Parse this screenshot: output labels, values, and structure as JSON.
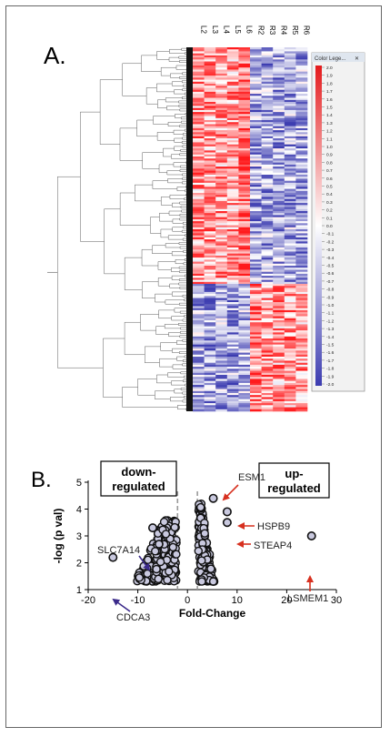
{
  "panel_a": {
    "label": "A.",
    "columns": [
      "L2",
      "L3",
      "L4",
      "L5",
      "L6",
      "R2",
      "R3",
      "R4",
      "R5",
      "R6"
    ],
    "legend": {
      "title": "Color Lege...",
      "ticks": [
        "2.0",
        "1.9",
        "1.8",
        "1.7",
        "1.6",
        "1.5",
        "1.4",
        "1.3",
        "1.2",
        "1.1",
        "1.0",
        "0.9",
        "0.8",
        "0.7",
        "0.6",
        "0.5",
        "0.4",
        "0.3",
        "0.2",
        "0.1",
        "0.0",
        "-0.1",
        "-0.2",
        "-0.3",
        "-0.4",
        "-0.5",
        "-0.6",
        "-0.7",
        "-0.8",
        "-0.9",
        "-1.0",
        "-1.1",
        "-1.2",
        "-1.3",
        "-1.4",
        "-1.5",
        "-1.6",
        "-1.7",
        "-1.8",
        "-1.9",
        "-2.0"
      ]
    },
    "chart_data": {
      "type": "heatmap",
      "x": [
        "L2",
        "L3",
        "L4",
        "L5",
        "L6",
        "R2",
        "R3",
        "R4",
        "R5",
        "R6"
      ],
      "color_range": [
        -2.0,
        2.0
      ],
      "colors": {
        "high": "#e41a1c",
        "mid": "#ffffff",
        "low": "#3b3bb0"
      }
    }
  },
  "panel_b": {
    "label": "B.",
    "box_down": [
      "down-",
      "regulated"
    ],
    "box_up": [
      "up-",
      "regulated"
    ],
    "annotations": [
      {
        "id": "esm1",
        "text": "ESM1",
        "color": "#d7301f"
      },
      {
        "id": "hspb9",
        "text": "HSPB9",
        "color": "#d7301f"
      },
      {
        "id": "steap4",
        "text": "STEAP4",
        "color": "#d7301f"
      },
      {
        "id": "lsmem1",
        "text": "LSMEM1",
        "color": "#d7301f"
      },
      {
        "id": "slc7a14",
        "text": "SLC7A14",
        "color": "#3b2a8a"
      },
      {
        "id": "cdca3",
        "text": "CDCA3",
        "color": "#3b2a8a"
      }
    ],
    "chart_data": {
      "type": "scatter",
      "xlabel": "Fold-Change",
      "ylabel": "-log (p val)",
      "xlim": [
        -20,
        30
      ],
      "ylim": [
        1,
        5
      ],
      "xticks": [
        "-20",
        "-10",
        "0",
        "10",
        "20",
        "30"
      ],
      "yticks": [
        "1",
        "2",
        "3",
        "4",
        "5"
      ],
      "threshold_lines": [
        -2,
        2
      ],
      "highlighted_points": [
        {
          "name": "ESM1",
          "x": 5.2,
          "y": 4.4
        },
        {
          "name": "HSPB9",
          "x": 8.0,
          "y": 3.9
        },
        {
          "name": "STEAP4",
          "x": 8.0,
          "y": 3.5
        },
        {
          "name": "LSMEM1",
          "x": 25.0,
          "y": 3.0
        },
        {
          "name": "SLC7A14",
          "x": -7.0,
          "y": 3.3
        },
        {
          "name": "CDCA3",
          "x": -15.0,
          "y": 2.2
        }
      ]
    }
  }
}
